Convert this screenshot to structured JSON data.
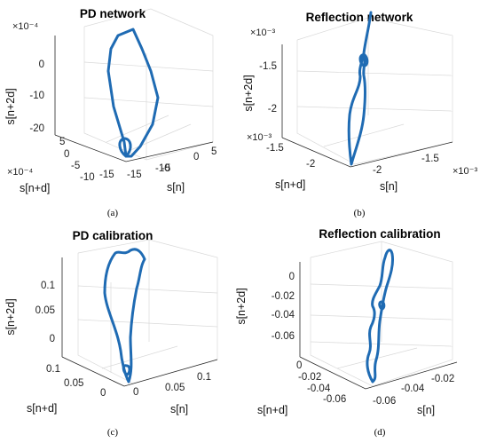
{
  "accent_color": "#1f6bb3",
  "chart_data": [
    {
      "type": "line",
      "panel": "a",
      "caption": "(a)",
      "title": "PD network",
      "xlabel": "s[n]",
      "ylabel": "s[n+d]",
      "zlabel": "s[n+2d]",
      "x_multiplier": "×10⁻⁴",
      "y_multiplier": "×10⁻⁴",
      "z_multiplier": "×10⁻⁴",
      "x_ticks": [
        "-15",
        "-10",
        "-5",
        "0",
        "5"
      ],
      "y_ticks": [
        "-15",
        "-10",
        "-5",
        "0",
        "5"
      ],
      "z_ticks": [
        "0",
        "-10",
        "-20"
      ],
      "grid": true,
      "line_points": [
        [
          0,
          0,
          -21
        ],
        [
          1,
          -1,
          -20
        ],
        [
          2,
          -3,
          -17
        ],
        [
          2,
          -5,
          -12
        ],
        [
          2,
          -6,
          -6
        ],
        [
          2,
          -6,
          0
        ],
        [
          1,
          -5,
          4
        ],
        [
          0,
          -3,
          6
        ],
        [
          -1,
          -1,
          5
        ],
        [
          -2,
          1,
          2
        ],
        [
          -2,
          2,
          -4
        ],
        [
          -1,
          2,
          -10
        ],
        [
          0,
          1,
          -15
        ],
        [
          1,
          -1,
          -19
        ],
        [
          1,
          -2,
          -21
        ],
        [
          0,
          0,
          -21
        ]
      ]
    },
    {
      "type": "line",
      "panel": "b",
      "caption": "(b)",
      "title": "Reflection network",
      "xlabel": "s[n]",
      "ylabel": "s[n+d]",
      "zlabel": "s[n+2d]",
      "x_multiplier": "×10⁻³",
      "y_multiplier": "×10⁻³",
      "z_multiplier": "×10⁻³",
      "x_ticks": [
        "-2",
        "-1.5"
      ],
      "y_ticks": [
        "-2",
        "-1.5"
      ],
      "z_ticks": [
        "-1.5",
        "-2"
      ],
      "grid": true,
      "line_points": [
        [
          -1.9,
          -1.6,
          -1.15
        ],
        [
          -1.9,
          -1.65,
          -1.3
        ],
        [
          -1.85,
          -1.7,
          -1.5
        ],
        [
          -1.85,
          -1.75,
          -1.65
        ],
        [
          -1.9,
          -1.75,
          -1.9
        ],
        [
          -1.95,
          -1.8,
          -2.1
        ],
        [
          -2.0,
          -1.85,
          -2.3
        ],
        [
          -2.05,
          -1.9,
          -2.45
        ],
        [
          -2.05,
          -1.9,
          -2.2
        ],
        [
          -2.0,
          -1.85,
          -1.9
        ],
        [
          -1.95,
          -1.8,
          -1.7
        ],
        [
          -1.9,
          -1.75,
          -1.6
        ],
        [
          -1.88,
          -1.72,
          -1.5
        ],
        [
          -1.9,
          -1.7,
          -1.4
        ]
      ]
    },
    {
      "type": "line",
      "panel": "c",
      "caption": "(c)",
      "title": "PD calibration",
      "xlabel": "s[n]",
      "ylabel": "s[n+d]",
      "zlabel": "s[n+2d]",
      "x_ticks": [
        "0",
        "0.05",
        "0.1"
      ],
      "y_ticks": [
        "0",
        "0.05",
        "0.1"
      ],
      "z_ticks": [
        "0",
        "0.05",
        "0.1"
      ],
      "grid": true,
      "line_points": [
        [
          0.01,
          0.01,
          -0.02
        ],
        [
          0.02,
          0.0,
          0.02
        ],
        [
          0.03,
          -0.01,
          0.06
        ],
        [
          0.05,
          -0.01,
          0.1
        ],
        [
          0.06,
          0.0,
          0.13
        ],
        [
          0.05,
          0.02,
          0.14
        ],
        [
          0.02,
          0.04,
          0.12
        ],
        [
          0.0,
          0.05,
          0.08
        ],
        [
          -0.01,
          0.05,
          0.04
        ],
        [
          0.0,
          0.03,
          0.0
        ],
        [
          0.01,
          0.02,
          -0.02
        ]
      ]
    },
    {
      "type": "line",
      "panel": "d",
      "caption": "(d)",
      "title": "Reflection calibration",
      "xlabel": "s[n]",
      "ylabel": "s[n+d]",
      "zlabel": "s[n+2d]",
      "x_ticks": [
        "-0.06",
        "-0.04",
        "-0.02"
      ],
      "y_ticks": [
        "-0.06",
        "-0.04",
        "-0.02",
        "0"
      ],
      "z_ticks": [
        "0",
        "-0.02",
        "-0.04",
        "-0.06"
      ],
      "grid": true,
      "line_points": [
        [
          -0.03,
          -0.04,
          -0.07
        ],
        [
          -0.035,
          -0.045,
          -0.06
        ],
        [
          -0.03,
          -0.05,
          -0.05
        ],
        [
          -0.025,
          -0.045,
          -0.04
        ],
        [
          -0.028,
          -0.04,
          -0.03
        ],
        [
          -0.025,
          -0.035,
          -0.02
        ],
        [
          -0.02,
          -0.03,
          -0.01
        ],
        [
          -0.015,
          -0.03,
          0.0
        ],
        [
          -0.015,
          -0.03,
          0.008
        ],
        [
          -0.02,
          -0.035,
          -0.005
        ],
        [
          -0.03,
          -0.04,
          -0.03
        ],
        [
          -0.035,
          -0.045,
          -0.055
        ],
        [
          -0.03,
          -0.04,
          -0.07
        ]
      ]
    }
  ]
}
